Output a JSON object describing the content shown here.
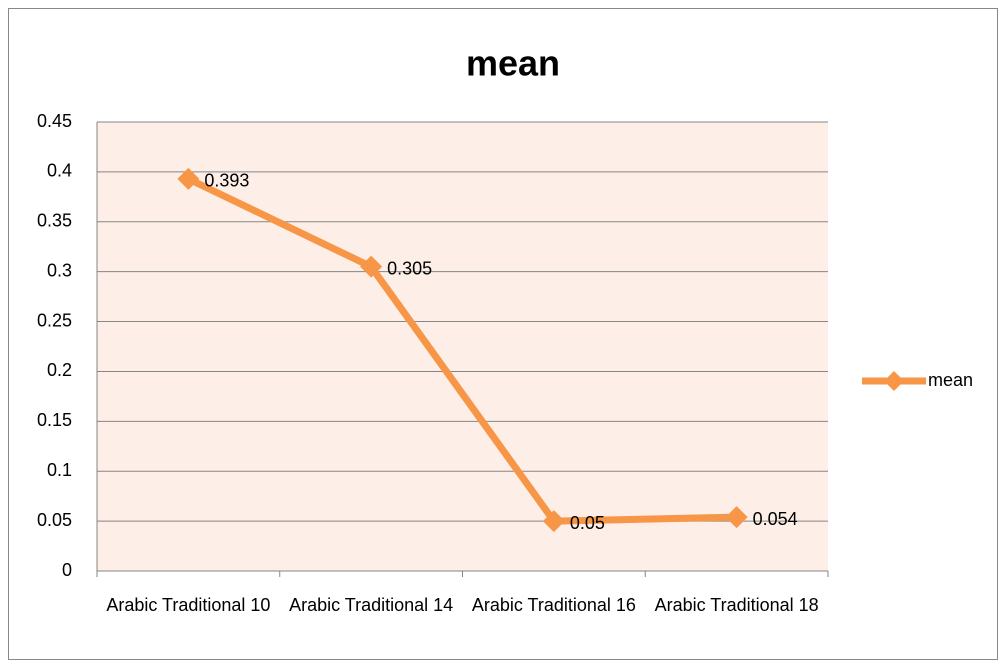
{
  "chart_data": {
    "type": "line",
    "title": "mean",
    "categories": [
      "Arabic Traditional 10",
      "Arabic Traditional 14",
      "Arabic Traditional 16",
      "Arabic Traditional 18"
    ],
    "series": [
      {
        "name": "mean",
        "color": "#f79646",
        "values": [
          0.393,
          0.305,
          0.05,
          0.054
        ]
      }
    ],
    "ylim": [
      0,
      0.45
    ],
    "yticks": [
      0,
      0.05,
      0.1,
      0.15,
      0.2,
      0.25,
      0.3,
      0.35,
      0.4,
      0.45
    ],
    "grid": true,
    "legend": "right",
    "data_labels": true
  }
}
